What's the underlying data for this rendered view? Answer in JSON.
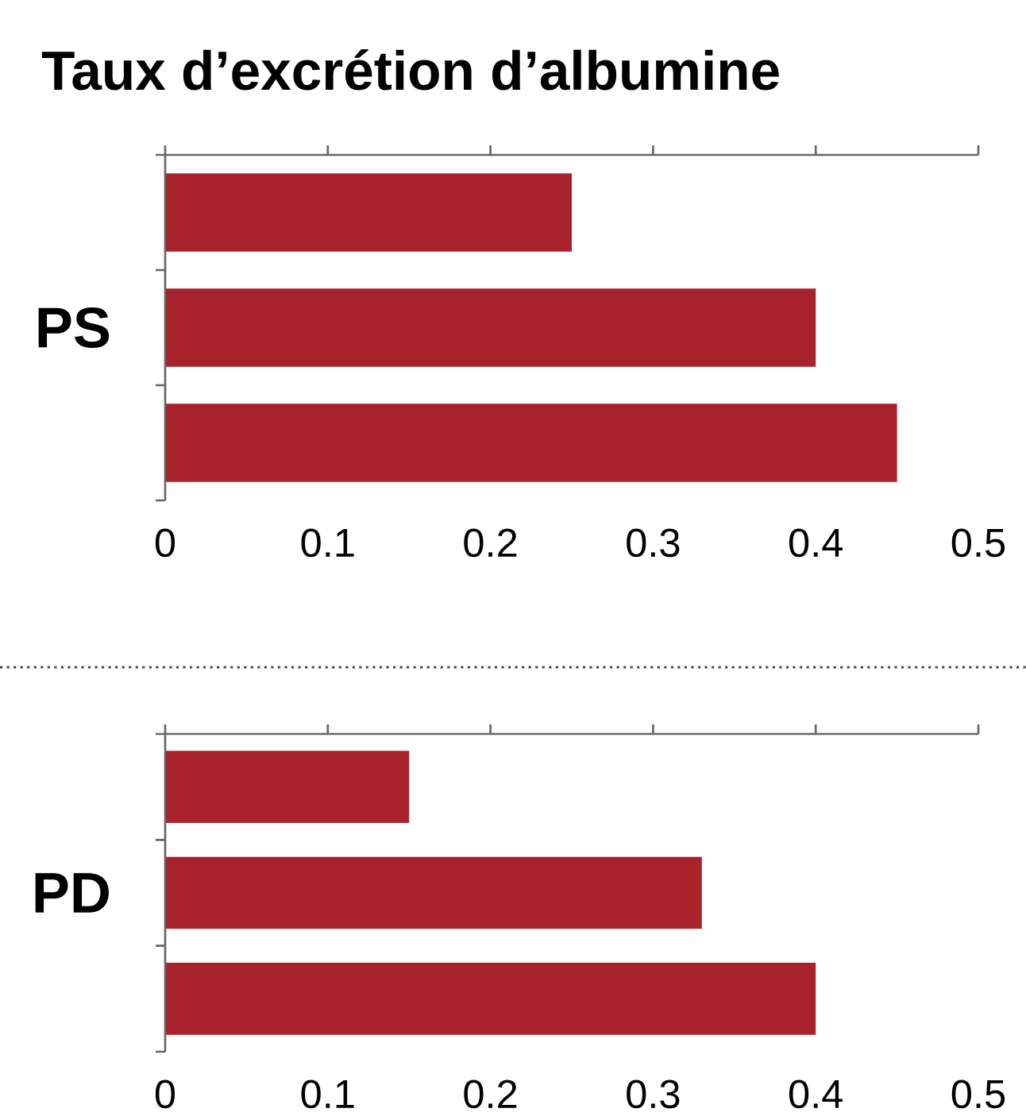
{
  "chart_data": [
    {
      "type": "bar",
      "orientation": "horizontal",
      "title": "Taux d’excrétion d’albumine",
      "ylabel": "PS",
      "categories": [
        null,
        null,
        null
      ],
      "values": [
        0.25,
        0.4,
        0.45
      ],
      "color": "#a8222c",
      "xlim": [
        0,
        0.5
      ],
      "xticks": [
        0,
        0.1,
        0.2,
        0.3,
        0.4,
        0.5
      ]
    },
    {
      "type": "bar",
      "orientation": "horizontal",
      "ylabel": "PD",
      "categories": [
        null,
        null,
        null
      ],
      "values": [
        0.15,
        0.33,
        0.4
      ],
      "color": "#a8222c",
      "xlim": [
        0,
        0.5
      ],
      "xticks": [
        0,
        0.1,
        0.2,
        0.3,
        0.4,
        0.5
      ]
    }
  ]
}
